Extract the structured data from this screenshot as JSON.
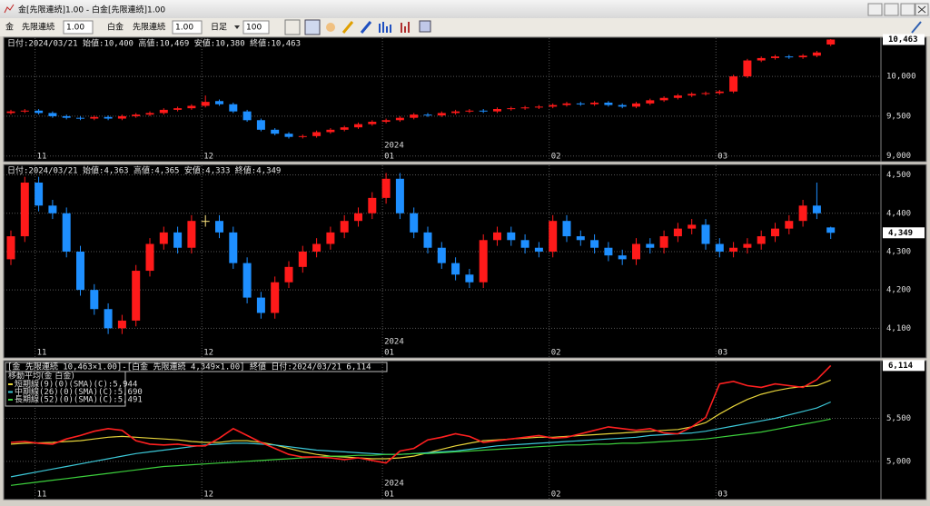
{
  "window": {
    "title": "金[先限連続]1.00 - 白金[先限連続]1.00"
  },
  "toolbar": {
    "symbol1": "金",
    "contract1": "先限連続",
    "mult1": "1.00",
    "symbol2": "白金",
    "contract2": "先限連続",
    "mult2": "1.00",
    "period": "日足",
    "count": "100"
  },
  "x_axis": {
    "categories": [
      null,
      null,
      "11",
      null,
      null,
      null,
      null,
      null,
      null,
      null,
      null,
      null,
      null,
      null,
      "12",
      null,
      null,
      null,
      null,
      null,
      null,
      null,
      null,
      null,
      null,
      null,
      null,
      "01",
      null,
      null,
      null,
      null,
      null,
      null,
      null,
      null,
      null,
      null,
      null,
      "02",
      null,
      null,
      null,
      null,
      null,
      null,
      null,
      null,
      null,
      null,
      null,
      "03",
      null,
      null,
      null,
      null,
      null,
      null,
      null,
      null
    ],
    "year_label": "2024"
  },
  "chart_data": [
    {
      "type": "candlestick",
      "header": "日付:2024/03/21 始値:10,400 高値:10,469 安値:10,380 終値:10,463",
      "up_color": "#ff1a1a",
      "down_color": "#1e8fff",
      "grid": true,
      "ylim": [
        8940,
        10480
      ],
      "yticks": [
        {
          "value": 9000,
          "label": "9,000"
        },
        {
          "value": 9500,
          "label": "9,500"
        },
        {
          "value": 10000,
          "label": "10,000"
        }
      ],
      "last_value": {
        "value": 10463,
        "label": "10,463"
      },
      "open": [
        9540,
        9560,
        9570,
        9540,
        9500,
        9480,
        9470,
        9490,
        9470,
        9500,
        9520,
        9540,
        9580,
        9600,
        9630,
        9690,
        9650,
        9560,
        9450,
        9330,
        9280,
        9240,
        9250,
        9300,
        9330,
        9360,
        9400,
        9430,
        9450,
        9480,
        9520,
        9510,
        9540,
        9560,
        9570,
        9560,
        9590,
        9600,
        9610,
        9620,
        9640,
        9660,
        9650,
        9670,
        9640,
        9620,
        9660,
        9700,
        9730,
        9760,
        9780,
        9790,
        9810,
        10000,
        10200,
        10230,
        10250,
        10240,
        10260,
        10400
      ],
      "high": [
        9580,
        9590,
        9590,
        9560,
        9520,
        9500,
        9510,
        9510,
        9520,
        9540,
        9560,
        9600,
        9620,
        9650,
        9760,
        9710,
        9670,
        9580,
        9470,
        9350,
        9300,
        9270,
        9320,
        9350,
        9380,
        9420,
        9450,
        9470,
        9500,
        9540,
        9540,
        9560,
        9580,
        9590,
        9590,
        9610,
        9620,
        9630,
        9640,
        9660,
        9680,
        9680,
        9690,
        9690,
        9660,
        9680,
        9720,
        9750,
        9780,
        9800,
        9810,
        9830,
        10020,
        10220,
        10250,
        10270,
        10270,
        10280,
        10320,
        10469
      ],
      "low": [
        9520,
        9540,
        9520,
        9480,
        9460,
        9450,
        9450,
        9450,
        9450,
        9480,
        9500,
        9520,
        9560,
        9580,
        9610,
        9630,
        9540,
        9430,
        9310,
        9260,
        9220,
        9220,
        9230,
        9280,
        9310,
        9340,
        9380,
        9410,
        9430,
        9460,
        9490,
        9490,
        9520,
        9540,
        9540,
        9540,
        9570,
        9580,
        9590,
        9600,
        9620,
        9630,
        9630,
        9620,
        9600,
        9600,
        9640,
        9680,
        9710,
        9740,
        9760,
        9770,
        9790,
        9980,
        10180,
        10210,
        10220,
        10220,
        10240,
        10380
      ],
      "close": [
        9560,
        9570,
        9540,
        9500,
        9480,
        9470,
        9490,
        9470,
        9500,
        9520,
        9540,
        9580,
        9600,
        9630,
        9680,
        9650,
        9560,
        9450,
        9330,
        9280,
        9240,
        9250,
        9300,
        9330,
        9360,
        9400,
        9430,
        9450,
        9480,
        9520,
        9510,
        9540,
        9560,
        9570,
        9560,
        9590,
        9600,
        9610,
        9620,
        9640,
        9660,
        9650,
        9670,
        9640,
        9620,
        9660,
        9700,
        9730,
        9760,
        9780,
        9790,
        9810,
        10000,
        10200,
        10230,
        10250,
        10240,
        10260,
        10300,
        10463
      ]
    },
    {
      "type": "candlestick",
      "header": "日付:2024/03/21 始値:4,363 高値:4,365 安値:4,333 終値:4,349",
      "up_color": "#ff1a1a",
      "down_color": "#1e8fff",
      "grid": true,
      "ylim": [
        4025,
        4525
      ],
      "yticks": [
        {
          "value": 4100,
          "label": "4,100"
        },
        {
          "value": 4200,
          "label": "4,200"
        },
        {
          "value": 4300,
          "label": "4,300"
        },
        {
          "value": 4400,
          "label": "4,400"
        },
        {
          "value": 4500,
          "label": "4,500"
        }
      ],
      "last_value": {
        "value": 4349,
        "label": "4,349"
      },
      "open": [
        4280,
        4340,
        4480,
        4420,
        4400,
        4300,
        4200,
        4150,
        4100,
        4120,
        4250,
        4320,
        4350,
        4310,
        4380,
        4380,
        4350,
        4270,
        4180,
        4140,
        4220,
        4260,
        4300,
        4320,
        4350,
        4380,
        4400,
        4440,
        4490,
        4400,
        4350,
        4310,
        4270,
        4240,
        4220,
        4330,
        4350,
        4330,
        4310,
        4300,
        4380,
        4340,
        4330,
        4310,
        4290,
        4280,
        4320,
        4310,
        4340,
        4360,
        4370,
        4320,
        4300,
        4310,
        4320,
        4340,
        4360,
        4380,
        4420,
        4363
      ],
      "high": [
        4355,
        4495,
        4495,
        4435,
        4415,
        4315,
        4215,
        4165,
        4135,
        4265,
        4335,
        4365,
        4365,
        4395,
        4395,
        4395,
        4365,
        4285,
        4195,
        4235,
        4275,
        4315,
        4335,
        4365,
        4395,
        4415,
        4455,
        4505,
        4505,
        4415,
        4365,
        4325,
        4285,
        4255,
        4345,
        4365,
        4365,
        4345,
        4325,
        4395,
        4395,
        4355,
        4345,
        4325,
        4305,
        4335,
        4335,
        4355,
        4375,
        4385,
        4385,
        4335,
        4325,
        4335,
        4355,
        4375,
        4395,
        4435,
        4480,
        4365
      ],
      "low": [
        4265,
        4325,
        4405,
        4385,
        4285,
        4185,
        4135,
        4085,
        4085,
        4105,
        4235,
        4305,
        4295,
        4295,
        4365,
        4335,
        4255,
        4165,
        4125,
        4125,
        4205,
        4245,
        4285,
        4305,
        4335,
        4365,
        4385,
        4425,
        4385,
        4335,
        4295,
        4255,
        4225,
        4205,
        4205,
        4315,
        4315,
        4295,
        4285,
        4285,
        4325,
        4315,
        4295,
        4275,
        4265,
        4265,
        4295,
        4295,
        4325,
        4345,
        4305,
        4285,
        4285,
        4295,
        4305,
        4325,
        4345,
        4365,
        4385,
        4333
      ],
      "close": [
        4340,
        4480,
        4420,
        4400,
        4300,
        4200,
        4150,
        4100,
        4120,
        4250,
        4320,
        4350,
        4310,
        4380,
        4380,
        4350,
        4270,
        4180,
        4140,
        4220,
        4260,
        4300,
        4320,
        4350,
        4380,
        4400,
        4440,
        4490,
        4400,
        4350,
        4310,
        4270,
        4240,
        4220,
        4330,
        4350,
        4330,
        4310,
        4300,
        4380,
        4340,
        4330,
        4310,
        4290,
        4280,
        4320,
        4310,
        4340,
        4360,
        4370,
        4320,
        4300,
        4310,
        4320,
        4340,
        4360,
        4380,
        4420,
        4400,
        4349
      ]
    },
    {
      "type": "line",
      "header": "[金 先限連続 10,463×1.00]-[白金 先限連続 4,349×1.00] 終値 日付:2024/03/21 6,114",
      "legend_title": "移動平均(金 白金)",
      "grid": true,
      "color": "#ff2020",
      "ylim": [
        4565,
        6160
      ],
      "yticks": [
        {
          "value": 5000,
          "label": "5,000"
        },
        {
          "value": 5500,
          "label": "5,500"
        }
      ],
      "last_value": {
        "value": 6114,
        "label": "6,114"
      },
      "values": [
        5220,
        5230,
        5210,
        5200,
        5260,
        5300,
        5350,
        5380,
        5360,
        5240,
        5200,
        5190,
        5200,
        5180,
        5180,
        5270,
        5380,
        5300,
        5220,
        5150,
        5080,
        5050,
        5050,
        5040,
        5020,
        5040,
        5010,
        4980,
        5120,
        5150,
        5250,
        5280,
        5320,
        5290,
        5220,
        5240,
        5260,
        5280,
        5300,
        5270,
        5280,
        5320,
        5360,
        5400,
        5380,
        5360,
        5380,
        5330,
        5320,
        5400,
        5510,
        5900,
        5930,
        5880,
        5860,
        5900,
        5880,
        5860,
        5950,
        6114
      ],
      "series": [
        {
          "name": "短期線(9)(0)(SMA)(C):5,944",
          "color": "#e6d33a",
          "values": [
            5200,
            5210,
            5215,
            5220,
            5230,
            5240,
            5260,
            5280,
            5290,
            5280,
            5270,
            5260,
            5250,
            5230,
            5220,
            5220,
            5240,
            5240,
            5220,
            5190,
            5150,
            5110,
            5080,
            5060,
            5050,
            5040,
            5030,
            5030,
            5040,
            5060,
            5100,
            5140,
            5180,
            5210,
            5240,
            5250,
            5260,
            5270,
            5280,
            5280,
            5290,
            5300,
            5310,
            5320,
            5330,
            5340,
            5350,
            5360,
            5370,
            5400,
            5450,
            5550,
            5640,
            5720,
            5780,
            5820,
            5850,
            5870,
            5880,
            5944
          ]
        },
        {
          "name": "中期線(26)(0)(SMA)(C):5,690",
          "color": "#3cc8d8",
          "values": [
            4820,
            4850,
            4880,
            4910,
            4940,
            4970,
            5000,
            5030,
            5060,
            5090,
            5110,
            5130,
            5150,
            5170,
            5190,
            5200,
            5210,
            5210,
            5200,
            5190,
            5170,
            5150,
            5130,
            5120,
            5110,
            5100,
            5090,
            5080,
            5080,
            5090,
            5100,
            5110,
            5120,
            5140,
            5160,
            5180,
            5190,
            5200,
            5210,
            5220,
            5230,
            5240,
            5250,
            5260,
            5270,
            5280,
            5300,
            5310,
            5320,
            5330,
            5350,
            5380,
            5410,
            5440,
            5470,
            5500,
            5540,
            5580,
            5620,
            5690
          ]
        },
        {
          "name": "長期線(52)(0)(SMA)(C):5,491",
          "color": "#3ccf3c",
          "values": [
            4720,
            4740,
            4760,
            4780,
            4800,
            4820,
            4840,
            4860,
            4880,
            4900,
            4920,
            4940,
            4950,
            4960,
            4970,
            4980,
            4990,
            5000,
            5010,
            5020,
            5030,
            5040,
            5050,
            5060,
            5060,
            5070,
            5070,
            5080,
            5080,
            5090,
            5090,
            5100,
            5110,
            5120,
            5130,
            5140,
            5150,
            5160,
            5170,
            5180,
            5190,
            5190,
            5200,
            5200,
            5210,
            5210,
            5220,
            5230,
            5240,
            5250,
            5260,
            5280,
            5300,
            5320,
            5340,
            5370,
            5400,
            5430,
            5460,
            5491
          ]
        }
      ]
    }
  ]
}
